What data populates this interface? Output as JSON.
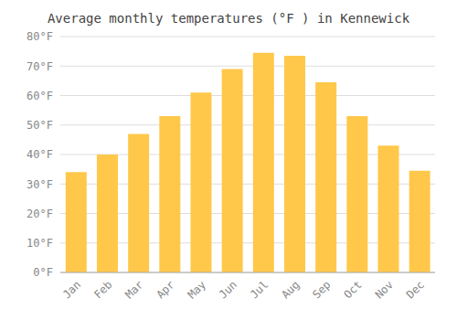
{
  "chart_data": {
    "type": "bar",
    "title": "Average monthly temperatures (°F ) in Kennewick",
    "categories": [
      "Jan",
      "Feb",
      "Mar",
      "Apr",
      "May",
      "Jun",
      "Jul",
      "Aug",
      "Sep",
      "Oct",
      "Nov",
      "Dec"
    ],
    "values": [
      34,
      40,
      47,
      53,
      61,
      69,
      74.5,
      73.5,
      64.5,
      53,
      43,
      34.5
    ],
    "color": "#FFC84A",
    "ylim": [
      0,
      80
    ],
    "yticks": [
      {
        "value": 0,
        "label": "0°F"
      },
      {
        "value": 10,
        "label": "10°F"
      },
      {
        "value": 20,
        "label": "20°F"
      },
      {
        "value": 30,
        "label": "30°F"
      },
      {
        "value": 40,
        "label": "40°F"
      },
      {
        "value": 50,
        "label": "50°F"
      },
      {
        "value": 60,
        "label": "60°F"
      },
      {
        "value": 70,
        "label": "70°F"
      },
      {
        "value": 80,
        "label": "80°F"
      }
    ],
    "grid": true
  }
}
